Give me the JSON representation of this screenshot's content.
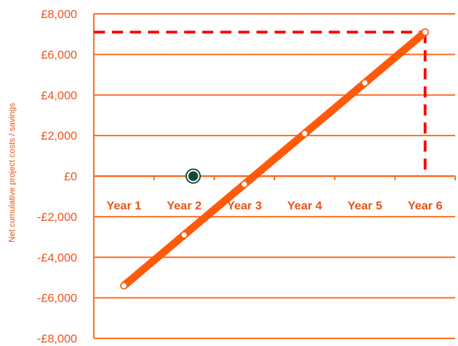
{
  "chart_data": {
    "type": "line",
    "title": "",
    "xlabel": "",
    "ylabel": "Net cumulative project costs / savings",
    "categories": [
      "Year 1",
      "Year 2",
      "Year 3",
      "Year 4",
      "Year 5",
      "Year 6"
    ],
    "y_tick_labels": [
      "£8,000",
      "£6,000",
      "£4,000",
      "£2,000",
      "£0",
      "-£2,000",
      "-£4,000",
      "-£6,000",
      "-£8,000"
    ],
    "y_tick_values": [
      8000,
      6000,
      4000,
      2000,
      0,
      -2000,
      -4000,
      -6000,
      -8000
    ],
    "ylim": [
      -8000,
      8000
    ],
    "series": [
      {
        "values": [
          -5400,
          -2900,
          -400,
          2100,
          4600,
          7100
        ]
      }
    ],
    "break_even": {
      "x": 2.15,
      "y": 0
    },
    "final_value_guide": {
      "x": 6,
      "y": 7100,
      "style": "dashed"
    },
    "grid": "horizontal",
    "legend": "none",
    "colors": {
      "line": "#ff5a0a",
      "axis": "#ff6a1a",
      "text": "#e8541a",
      "guide": "#ff0000",
      "marker_fill": "#ffffff",
      "break_even_fill": "#16483a"
    }
  }
}
